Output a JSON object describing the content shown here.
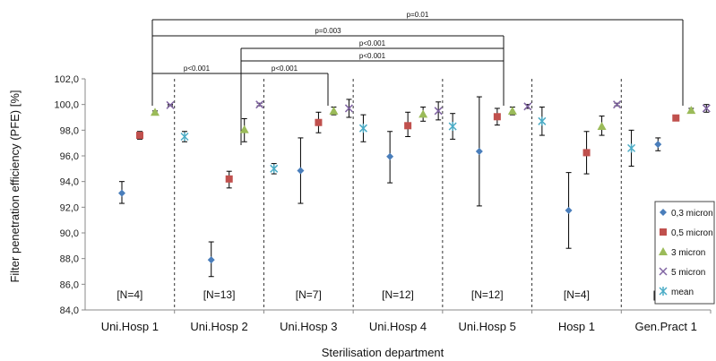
{
  "chart_data": {
    "type": "scatter",
    "xlabel": "Sterilisation department",
    "ylabel": "Filter penetration efficiency (PFE) [%]",
    "ylim": [
      84,
      102
    ],
    "yticks": [
      "84,0",
      "86,0",
      "88,0",
      "90,0",
      "92,0",
      "94,0",
      "96,0",
      "98,0",
      "100,0",
      "102,0"
    ],
    "grid": false,
    "legend_position": "right",
    "categories": [
      "Uni.Hosp  1",
      "Uni.Hosp  2",
      "Uni.Hosp 3",
      "Uni.Hosp 4",
      "Uni.Hosp 5",
      "Hosp 1",
      "Gen.Pract 1"
    ],
    "n_labels": [
      "[N=4]",
      "[N=13]",
      "[N=7]",
      "[N=12]",
      "[N=12]",
      "[N=4]",
      "[N=6]"
    ],
    "series": [
      {
        "name": "0,3 micron",
        "marker": "diamond",
        "color": "#4a7ebb",
        "values": [
          93.1,
          87.9,
          94.85,
          95.95,
          96.35,
          91.75,
          96.9
        ],
        "err_low": [
          92.3,
          86.6,
          92.3,
          93.9,
          92.1,
          88.8,
          96.4
        ],
        "err_high": [
          94.0,
          89.3,
          97.4,
          97.9,
          100.6,
          94.7,
          97.4
        ]
      },
      {
        "name": "0,5 micron",
        "marker": "square",
        "color": "#c0504d",
        "values": [
          97.6,
          94.2,
          98.6,
          98.35,
          99.05,
          96.25,
          98.95
        ],
        "err_low": [
          97.3,
          93.5,
          97.8,
          97.5,
          98.4,
          94.6,
          98.8
        ],
        "err_high": [
          97.9,
          94.8,
          99.4,
          99.4,
          99.7,
          97.9,
          99.1
        ]
      },
      {
        "name": "3 micron",
        "marker": "triangle",
        "color": "#9bbb59",
        "values": [
          99.4,
          98.05,
          99.5,
          99.25,
          99.5,
          98.3,
          99.55
        ],
        "err_low": [
          99.3,
          97.1,
          99.2,
          98.7,
          99.2,
          97.6,
          99.4
        ],
        "err_high": [
          99.5,
          98.9,
          99.8,
          99.8,
          99.8,
          99.1,
          99.7
        ]
      },
      {
        "name": "5 micron",
        "marker": "x",
        "color": "#8064a2",
        "values": [
          99.95,
          100.0,
          99.7,
          99.5,
          99.85,
          100.0,
          99.7
        ],
        "err_low": [
          99.9,
          99.9,
          99.0,
          98.8,
          99.7,
          99.9,
          99.4
        ],
        "err_high": [
          100.0,
          100.1,
          100.4,
          100.2,
          100.0,
          100.1,
          100.0
        ]
      },
      {
        "name": "mean",
        "marker": "asterisk",
        "color": "#4bacc6",
        "values": [
          97.5,
          95.0,
          98.15,
          98.3,
          98.7,
          96.6,
          98.8
        ],
        "err_low": [
          97.1,
          94.6,
          97.1,
          97.3,
          97.6,
          95.2,
          98.6
        ],
        "err_high": [
          97.9,
          95.4,
          99.2,
          99.3,
          99.8,
          98.0,
          99.0
        ]
      }
    ],
    "annotations": [
      {
        "label": "p=0.01",
        "from_category": 0,
        "to_category": 6
      },
      {
        "label": "p=0.003",
        "from_category": 0,
        "to_category": 4
      },
      {
        "label": "p<0.001",
        "from_category": 1,
        "to_category": 4
      },
      {
        "label": "p<0.001",
        "from_category": 1,
        "to_category": 4
      },
      {
        "label": "p<0.001",
        "from_category": 0,
        "to_category": 1
      },
      {
        "label": "p<0.001",
        "from_category": 1,
        "to_category": 2
      }
    ]
  }
}
